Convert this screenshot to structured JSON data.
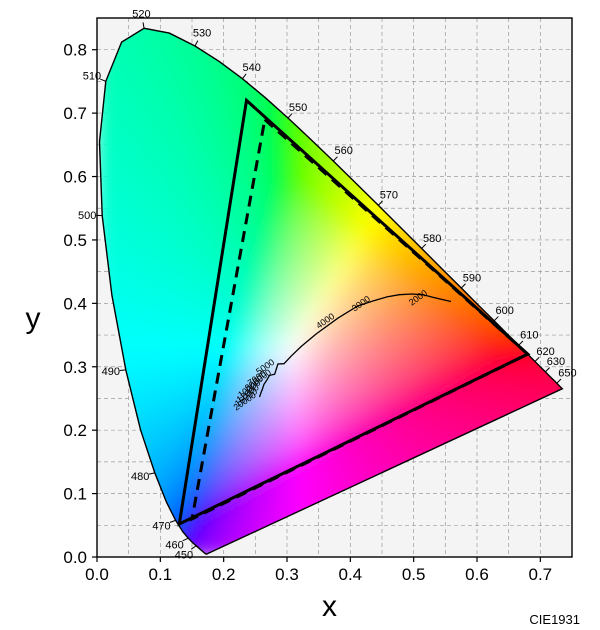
{
  "source_label": "CIE1931",
  "colors": {
    "background": "#ffffff",
    "plot_background": "#f4f4f4",
    "grid": "#9a9a9a",
    "outline": "#000000"
  },
  "chart_data": {
    "type": "scatter",
    "title": "",
    "xlabel": "x",
    "ylabel": "y",
    "xlim": [
      0.0,
      0.75
    ],
    "ylim": [
      0.0,
      0.85
    ],
    "x_ticks": [
      {
        "v": 0.0,
        "label": "0.0"
      },
      {
        "v": 0.1,
        "label": "0.1"
      },
      {
        "v": 0.2,
        "label": "0.2"
      },
      {
        "v": 0.3,
        "label": "0.3"
      },
      {
        "v": 0.4,
        "label": "0.4"
      },
      {
        "v": 0.5,
        "label": "0.5"
      },
      {
        "v": 0.6,
        "label": "0.6"
      },
      {
        "v": 0.7,
        "label": "0.7"
      }
    ],
    "y_ticks": [
      {
        "v": 0.0,
        "label": "0.0"
      },
      {
        "v": 0.1,
        "label": "0.1"
      },
      {
        "v": 0.2,
        "label": "0.2"
      },
      {
        "v": 0.3,
        "label": "0.3"
      },
      {
        "v": 0.4,
        "label": "0.4"
      },
      {
        "v": 0.5,
        "label": "0.5"
      },
      {
        "v": 0.6,
        "label": "0.6"
      },
      {
        "v": 0.7,
        "label": "0.7"
      },
      {
        "v": 0.8,
        "label": "0.8"
      }
    ],
    "grid": true,
    "spectral_locus": [
      [
        0.1741,
        0.005
      ],
      [
        0.1738,
        0.0049
      ],
      [
        0.1736,
        0.0049
      ],
      [
        0.1733,
        0.0048
      ],
      [
        0.173,
        0.0048
      ],
      [
        0.1726,
        0.0048
      ],
      [
        0.1721,
        0.0048
      ],
      [
        0.1714,
        0.0051
      ],
      [
        0.1703,
        0.0058
      ],
      [
        0.1689,
        0.0069
      ],
      [
        0.1669,
        0.0086
      ],
      [
        0.1644,
        0.0109
      ],
      [
        0.1611,
        0.0138
      ],
      [
        0.1566,
        0.0177
      ],
      [
        0.151,
        0.0227
      ],
      [
        0.144,
        0.0297
      ],
      [
        0.1355,
        0.0399
      ],
      [
        0.1241,
        0.0578
      ],
      [
        0.1096,
        0.0868
      ],
      [
        0.0913,
        0.1327
      ],
      [
        0.0687,
        0.2007
      ],
      [
        0.0454,
        0.295
      ],
      [
        0.0235,
        0.4127
      ],
      [
        0.0082,
        0.5384
      ],
      [
        0.0039,
        0.6548
      ],
      [
        0.0139,
        0.7502
      ],
      [
        0.0389,
        0.812
      ],
      [
        0.0743,
        0.8338
      ],
      [
        0.1142,
        0.8262
      ],
      [
        0.1547,
        0.8059
      ],
      [
        0.1929,
        0.7816
      ],
      [
        0.2296,
        0.7543
      ],
      [
        0.2658,
        0.7243
      ],
      [
        0.3016,
        0.6923
      ],
      [
        0.3373,
        0.6589
      ],
      [
        0.3731,
        0.6245
      ],
      [
        0.4087,
        0.5896
      ],
      [
        0.4441,
        0.5547
      ],
      [
        0.4788,
        0.5202
      ],
      [
        0.5125,
        0.4866
      ],
      [
        0.5448,
        0.4544
      ],
      [
        0.5752,
        0.4242
      ],
      [
        0.6029,
        0.3965
      ],
      [
        0.627,
        0.3725
      ],
      [
        0.6482,
        0.3514
      ],
      [
        0.6658,
        0.334
      ],
      [
        0.6801,
        0.3197
      ],
      [
        0.6915,
        0.3083
      ],
      [
        0.7006,
        0.2993
      ],
      [
        0.7079,
        0.292
      ],
      [
        0.714,
        0.2859
      ],
      [
        0.719,
        0.2809
      ],
      [
        0.723,
        0.277
      ],
      [
        0.726,
        0.274
      ],
      [
        0.7283,
        0.2717
      ],
      [
        0.73,
        0.27
      ],
      [
        0.7311,
        0.2689
      ],
      [
        0.732,
        0.268
      ],
      [
        0.7327,
        0.2673
      ],
      [
        0.7334,
        0.2666
      ],
      [
        0.734,
        0.266
      ],
      [
        0.7344,
        0.2656
      ],
      [
        0.7346,
        0.2654
      ],
      [
        0.7347,
        0.2653
      ]
    ],
    "wavelength_labels": [
      {
        "label": "450",
        "x": 0.1566,
        "y": 0.0177,
        "angle": 215
      },
      {
        "label": "460",
        "x": 0.144,
        "y": 0.0297,
        "angle": 205
      },
      {
        "label": "470",
        "x": 0.1241,
        "y": 0.0578,
        "angle": 200
      },
      {
        "label": "480",
        "x": 0.0913,
        "y": 0.1327,
        "angle": 192
      },
      {
        "label": "490",
        "x": 0.0454,
        "y": 0.295,
        "angle": 185
      },
      {
        "label": "500",
        "x": 0.0082,
        "y": 0.5384,
        "angle": 178
      },
      {
        "label": "510",
        "x": 0.0139,
        "y": 0.7502,
        "angle": 158
      },
      {
        "label": "520",
        "x": 0.0743,
        "y": 0.8338,
        "angle": 100
      },
      {
        "label": "530",
        "x": 0.1547,
        "y": 0.8059,
        "angle": 62
      },
      {
        "label": "540",
        "x": 0.2296,
        "y": 0.7543,
        "angle": 52
      },
      {
        "label": "550",
        "x": 0.3016,
        "y": 0.6923,
        "angle": 48
      },
      {
        "label": "560",
        "x": 0.3731,
        "y": 0.6245,
        "angle": 46
      },
      {
        "label": "570",
        "x": 0.4441,
        "y": 0.5547,
        "angle": 45
      },
      {
        "label": "580",
        "x": 0.5125,
        "y": 0.4866,
        "angle": 45
      },
      {
        "label": "590",
        "x": 0.5752,
        "y": 0.4242,
        "angle": 45
      },
      {
        "label": "600",
        "x": 0.627,
        "y": 0.3725,
        "angle": 45
      },
      {
        "label": "610",
        "x": 0.6658,
        "y": 0.334,
        "angle": 45
      },
      {
        "label": "620",
        "x": 0.6915,
        "y": 0.3083,
        "angle": 45
      },
      {
        "label": "630",
        "x": 0.7079,
        "y": 0.292,
        "angle": 45
      },
      {
        "label": "650",
        "x": 0.726,
        "y": 0.274,
        "angle": 45
      }
    ],
    "planckian_locus": [
      [
        0.2565,
        0.2523
      ],
      [
        0.2586,
        0.2583
      ],
      [
        0.2611,
        0.2648
      ],
      [
        0.2637,
        0.2723
      ],
      [
        0.2679,
        0.2786
      ],
      [
        0.2724,
        0.2864
      ],
      [
        0.2806,
        0.2883
      ],
      [
        0.2857,
        0.3043
      ],
      [
        0.2952,
        0.3048
      ],
      [
        0.3064,
        0.3166
      ],
      [
        0.3221,
        0.3318
      ],
      [
        0.346,
        0.3516
      ],
      [
        0.3805,
        0.3768
      ],
      [
        0.4117,
        0.3958
      ],
      [
        0.4369,
        0.4041
      ],
      [
        0.4578,
        0.4101
      ],
      [
        0.4774,
        0.4137
      ],
      [
        0.497,
        0.4148
      ],
      [
        0.515,
        0.4135
      ],
      [
        0.53,
        0.4096
      ],
      [
        0.545,
        0.406
      ],
      [
        0.559,
        0.403
      ]
    ],
    "cct_labels": [
      {
        "label": "20000",
        "x": 0.2565,
        "y": 0.2523
      },
      {
        "label": "15000",
        "x": 0.2586,
        "y": 0.2583
      },
      {
        "label": "12000",
        "x": 0.2611,
        "y": 0.2648
      },
      {
        "label": "10000",
        "x": 0.2637,
        "y": 0.2723
      },
      {
        "label": "8000",
        "x": 0.2679,
        "y": 0.2786
      },
      {
        "label": "7000",
        "x": 0.2724,
        "y": 0.2864
      },
      {
        "label": "6000",
        "x": 0.2806,
        "y": 0.2883
      },
      {
        "label": "5000",
        "x": 0.2857,
        "y": 0.3043
      },
      {
        "label": "4000",
        "x": 0.3805,
        "y": 0.3768
      },
      {
        "label": "3000",
        "x": 0.4369,
        "y": 0.4041
      },
      {
        "label": "2000",
        "x": 0.527,
        "y": 0.4133
      }
    ],
    "series": [
      {
        "style": "solid",
        "points": [
          [
            0.236,
            0.72
          ],
          [
            0.68,
            0.32
          ],
          [
            0.13,
            0.052
          ]
        ]
      },
      {
        "style": "dashed",
        "points": [
          [
            0.265,
            0.69
          ],
          [
            0.68,
            0.32
          ],
          [
            0.15,
            0.06
          ]
        ]
      }
    ]
  }
}
